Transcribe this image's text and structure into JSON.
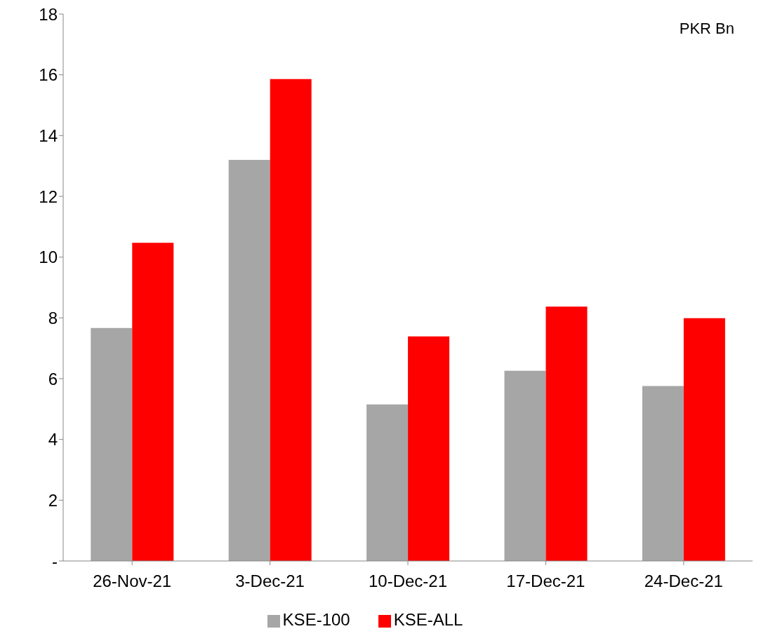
{
  "chart_data": {
    "type": "bar",
    "categories": [
      "26-Nov-21",
      "3-Dec-21",
      "10-Dec-21",
      "17-Dec-21",
      "24-Dec-21"
    ],
    "series": [
      {
        "name": "KSE-100",
        "color": "#a6a6a6",
        "values": [
          7.67,
          13.2,
          5.15,
          6.26,
          5.76
        ]
      },
      {
        "name": "KSE-ALL",
        "color": "#ff0000",
        "values": [
          10.47,
          15.86,
          7.39,
          8.37,
          7.99
        ]
      }
    ],
    "ylim": [
      0,
      18
    ],
    "yticks": [
      {
        "value": 0,
        "label": "-"
      },
      2,
      4,
      6,
      8,
      10,
      12,
      14,
      16,
      18
    ],
    "annotations": [
      "PKR Bn"
    ],
    "grid": false,
    "legend": "bottom"
  }
}
